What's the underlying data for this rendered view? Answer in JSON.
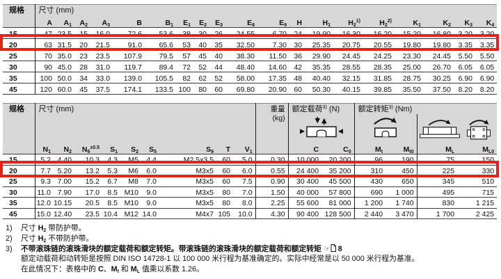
{
  "colors": {
    "highlight": "#e1251b",
    "header_bg": "#d7d7d7"
  },
  "table1": {
    "spec_header": "规格",
    "dim_header": "尺寸 (mm)",
    "columns": [
      {
        "t": "A"
      },
      {
        "t": "A",
        "sub": "1"
      },
      {
        "t": "A",
        "sub": "2"
      },
      {
        "t": "A",
        "sub": "3"
      },
      {
        "t": "B"
      },
      {
        "t": "B",
        "sub": "1"
      },
      {
        "t": "E",
        "sub": "1"
      },
      {
        "t": "E",
        "sub": "2"
      },
      {
        "t": "E",
        "sub": "3"
      },
      {
        "t": "E",
        "sub": "8"
      },
      {
        "t": "E",
        "sub": "9"
      },
      {
        "t": "H"
      },
      {
        "t": "H",
        "sub": "1"
      },
      {
        "t": "H",
        "sub": "2",
        "sup": "1)"
      },
      {
        "t": "H",
        "sub": "2",
        "sup": "2)"
      },
      {
        "t": "K",
        "sub": "1"
      },
      {
        "t": "K",
        "sub": "2"
      },
      {
        "t": "K",
        "sub": "3"
      },
      {
        "t": "K",
        "sub": "4"
      }
    ],
    "highlighted_spec": "20",
    "rows": [
      {
        "spec": "15",
        "values": [
          "47",
          "23.5",
          "15",
          "16.0",
          "72.6",
          "53.6",
          "38",
          "30",
          "26",
          "24.55",
          "6.70",
          "24",
          "19.90",
          "16.30",
          "16.20",
          "15.20",
          "16.80",
          "3.20",
          "3.20"
        ]
      },
      {
        "spec": "20",
        "values": [
          "63",
          "31.5",
          "20",
          "21.5",
          "91.0",
          "65.6",
          "53",
          "40",
          "35",
          "32.50",
          "7.30",
          "30",
          "25.35",
          "20.75",
          "20.55",
          "19.80",
          "19.80",
          "3.35",
          "3.35"
        ]
      },
      {
        "spec": "25",
        "values": [
          "70",
          "35.0",
          "23",
          "23.5",
          "107.9",
          "79.5",
          "57",
          "45",
          "40",
          "38.30",
          "11.50",
          "36",
          "29.90",
          "24.45",
          "24.25",
          "23.30",
          "24.45",
          "5.50",
          "5.50"
        ]
      },
      {
        "spec": "30",
        "values": [
          "90",
          "45.0",
          "28",
          "31.0",
          "119.7",
          "89.4",
          "72",
          "52",
          "44",
          "48.40",
          "14.60",
          "42",
          "35.35",
          "28.55",
          "28.35",
          "25.00",
          "26.70",
          "6.05",
          "6.05"
        ]
      },
      {
        "spec": "35",
        "values": [
          "100",
          "50.0",
          "34",
          "33.0",
          "139.0",
          "105.5",
          "82",
          "62",
          "52",
          "58.00",
          "17.35",
          "48",
          "40.40",
          "32.15",
          "31.85",
          "28.75",
          "30.25",
          "6.90",
          "6.90"
        ]
      },
      {
        "spec": "45",
        "values": [
          "120",
          "60.0",
          "45",
          "37.5",
          "174.1",
          "133.5",
          "100",
          "80",
          "60",
          "69.80",
          "20.90",
          "60",
          "50.30",
          "40.15",
          "39.85",
          "35.50",
          "37.50",
          "8.20",
          "8.20"
        ]
      }
    ]
  },
  "table2": {
    "spec_header": "规格",
    "dim_header": "尺寸 (mm)",
    "weight_header": "重量",
    "weight_unit": "(kg)",
    "load_header": [
      {
        "t": "额定载荷",
        "sup": "3)"
      },
      {
        "t": " (N)"
      }
    ],
    "torque_header": [
      {
        "t": "额定转矩",
        "sup": "3)"
      },
      {
        "t": " (Nm)"
      }
    ],
    "columns": [
      {
        "t": "N",
        "sub": "1"
      },
      {
        "t": "N",
        "sub": "2"
      },
      {
        "t": "N",
        "sub": "6",
        "sup": "±0.5"
      },
      {
        "t": "S",
        "sub": "1"
      },
      {
        "t": "S",
        "sub": "2"
      },
      {
        "t": "S",
        "sub": "5"
      },
      {
        "t": "S",
        "sub": "9"
      },
      {
        "t": "T"
      },
      {
        "t": "V",
        "sub": "1"
      },
      {
        "t": ""
      },
      {
        "t": "C"
      },
      {
        "t": "C",
        "sub": "0"
      },
      {
        "t": "M",
        "sub": "t"
      },
      {
        "t": "M",
        "sub": "t0"
      },
      {
        "t": "M",
        "sub": "L"
      },
      {
        "t": "M",
        "sub": "L0"
      }
    ],
    "highlighted_spec": "20",
    "rows": [
      {
        "spec": "15",
        "values": [
          "5.2",
          "4.40",
          "10.3",
          "4.3",
          "M5",
          "4.4",
          "M2.5x3.5",
          "60",
          "5.0",
          "0.30",
          "10 000",
          "20 200",
          "96",
          "190",
          "75",
          "150"
        ]
      },
      {
        "spec": "20",
        "values": [
          "7.7",
          "5.20",
          "13.2",
          "5.3",
          "M6",
          "6.0",
          "M3x5",
          "60",
          "6.0",
          "0.55",
          "24 400",
          "35 200",
          "310",
          "450",
          "225",
          "330"
        ]
      },
      {
        "spec": "25",
        "values": [
          "9.3",
          "7.00",
          "15.2",
          "6.7",
          "M8",
          "7.0",
          "M3x5",
          "60",
          "7.5",
          "0.90",
          "30 400",
          "45 500",
          "430",
          "650",
          "345",
          "510"
        ]
      },
      {
        "spec": "30",
        "values": [
          "11.0",
          "7.90",
          "17.0",
          "8.5",
          "M10",
          "9.0",
          "M3x5",
          "80",
          "7.0",
          "1.50",
          "40 000",
          "57 800",
          "690",
          "1 000",
          "495",
          "715"
        ]
      },
      {
        "spec": "35",
        "values": [
          "12.0",
          "10.15",
          "20.5",
          "8.5",
          "M10",
          "9.0",
          "M3x5",
          "80",
          "8.0",
          "2.25",
          "55 600",
          "81 000",
          "1 200",
          "1 740",
          "830",
          "1 215"
        ]
      },
      {
        "spec": "45",
        "values": [
          "15.0",
          "12.40",
          "23.5",
          "10.4",
          "M12",
          "14.0",
          "M4x7",
          "105",
          "10.0",
          "4.30",
          "90 400",
          "128 500",
          "2 440",
          "3 470",
          "1 700",
          "2 425"
        ]
      }
    ]
  },
  "footnotes": {
    "f1_num": "1)",
    "f1": [
      {
        "t": "尺寸 "
      },
      {
        "t": "H",
        "sub": "2",
        "b": true
      },
      {
        "t": " 带防护带。"
      }
    ],
    "f2_num": "2)",
    "f2": [
      {
        "t": "尺寸 "
      },
      {
        "t": "H",
        "sub": "2",
        "b": true
      },
      {
        "t": " 不带防护带。"
      }
    ],
    "f3_num": "3)",
    "f3_line1": [
      {
        "t": "不带滚珠链的滚珠滑块的额定载荷和额定转矩。带滚珠链的滚珠滑块的额定载荷和额定转矩 ",
        "b": true
      }
    ],
    "f3_hand": "☞",
    "f3_page_ref": "8",
    "f3_line2": [
      {
        "t": "额定动载荷和动转矩是按照 DIN ISO 14728-1 以 100 000 米行程为基准确定的。实际中经常是以 50 000 米行程为基准。"
      }
    ],
    "f3_line3": [
      {
        "t": "在此情况下：表格中的 "
      },
      {
        "t": "C",
        "b": true
      },
      {
        "t": "、"
      },
      {
        "t": "M",
        "sub": "t",
        "b": true
      },
      {
        "t": " 和 "
      },
      {
        "t": "M",
        "sub": "L",
        "b": true
      },
      {
        "t": " 值乘以系数 1.26。"
      }
    ]
  }
}
